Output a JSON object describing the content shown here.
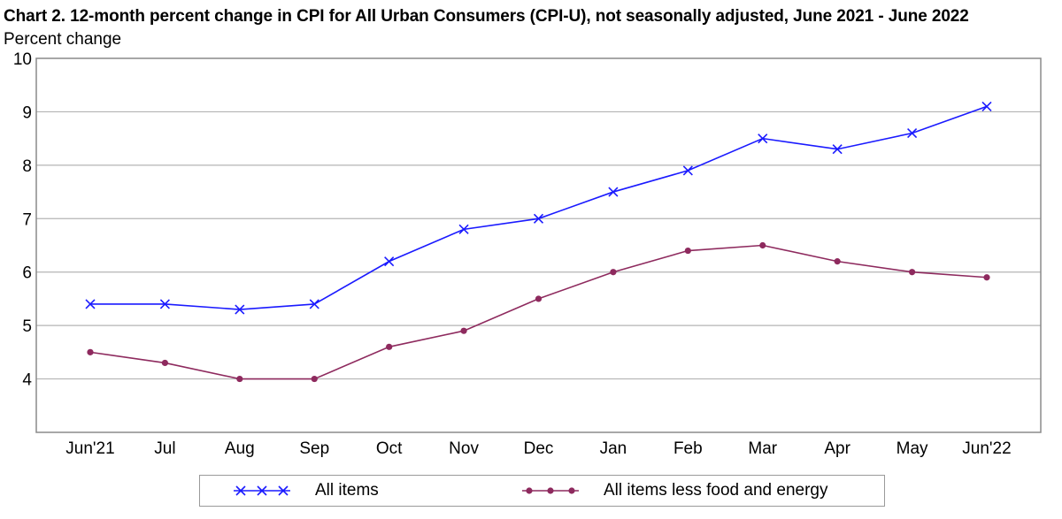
{
  "chart_data": {
    "type": "line",
    "title": "Chart 2. 12-month percent change in CPI for All Urban Consumers (CPI-U), not seasonally adjusted, June 2021 - June 2022",
    "ylabel": "Percent change",
    "xlabel": "",
    "categories": [
      "Jun'21",
      "Jul",
      "Aug",
      "Sep",
      "Oct",
      "Nov",
      "Dec",
      "Jan",
      "Feb",
      "Mar",
      "Apr",
      "May",
      "Jun'22"
    ],
    "ylim": [
      3,
      10
    ],
    "yticks": [
      4,
      5,
      6,
      7,
      8,
      9,
      10
    ],
    "grid": true,
    "legend_position": "bottom",
    "series": [
      {
        "name": "All items",
        "color": "#1a1aff",
        "marker": "x",
        "values": [
          5.4,
          5.4,
          5.3,
          5.4,
          6.2,
          6.8,
          7.0,
          7.5,
          7.9,
          8.5,
          8.3,
          8.6,
          9.1
        ]
      },
      {
        "name": "All items less food and energy",
        "color": "#8e2a5e",
        "marker": "circle",
        "values": [
          4.5,
          4.3,
          4.0,
          4.0,
          4.6,
          4.9,
          5.5,
          6.0,
          6.4,
          6.5,
          6.2,
          6.0,
          5.9
        ]
      }
    ]
  }
}
